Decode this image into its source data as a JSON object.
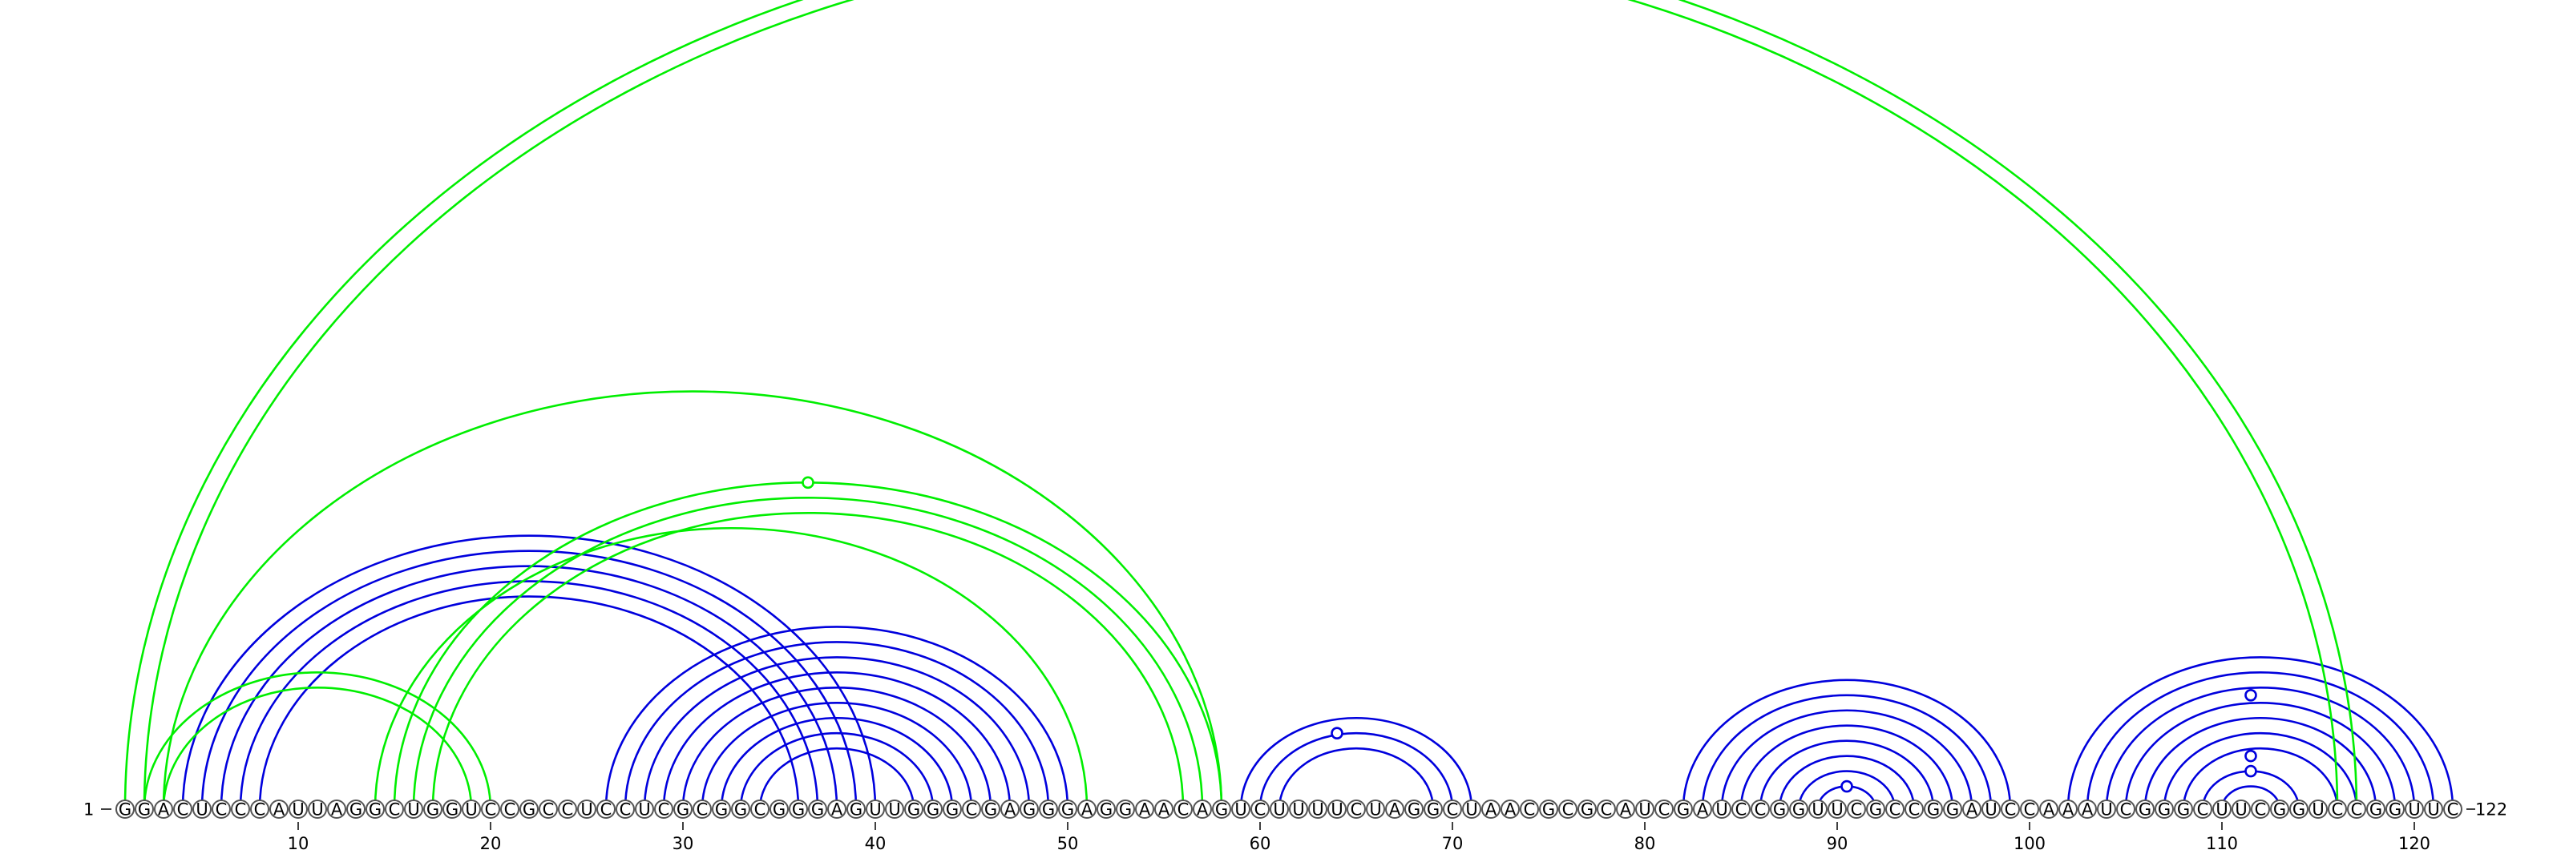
{
  "sequence": "GGACUCCCAUUAGGCUGGUCCGCCUCCUCGCGGCGGGAGUUGGGCGAGGGAGGAACAGUCUUUUCUAGGCUAACGCGCAUCGAUCCGGUUCGCCGGAUCCAAAUCGGGCUUCGGUCCGGUUC",
  "length": 122,
  "start_label": "1",
  "end_label": "122",
  "axis_ticks": [
    10,
    20,
    30,
    40,
    50,
    60,
    70,
    80,
    90,
    100,
    110,
    120
  ],
  "colors": {
    "blue": "#0000dd",
    "green": "#00ee00"
  },
  "blue_groups": [
    {
      "left": [
        4,
        5,
        6,
        7,
        8
      ],
      "right": [
        40,
        39,
        38,
        37,
        36
      ]
    },
    {
      "left": [
        26,
        27,
        28,
        29,
        30,
        31
      ],
      "right": [
        50,
        49,
        48,
        47,
        46,
        45
      ]
    },
    {
      "left": [
        32,
        33,
        34
      ],
      "right": [
        44,
        43,
        42
      ]
    },
    {
      "left": [
        59,
        60,
        61
      ],
      "right": [
        71,
        70,
        69
      ]
    },
    {
      "left": [
        82,
        83,
        84,
        85,
        86,
        87,
        88,
        89
      ],
      "right": [
        99,
        98,
        97,
        96,
        95,
        94,
        93,
        92
      ]
    },
    {
      "left": [
        102,
        103,
        104,
        105,
        106,
        107,
        108,
        109,
        110
      ],
      "right": [
        122,
        121,
        120,
        119,
        118,
        117,
        116,
        114,
        113
      ]
    }
  ],
  "green_groups": [
    {
      "left": [
        1,
        2
      ],
      "right": [
        117,
        116
      ]
    },
    {
      "left": [
        2,
        3
      ],
      "right": [
        20,
        19
      ]
    },
    {
      "left": [
        14
      ],
      "right": [
        51
      ]
    },
    {
      "left": [
        15,
        16,
        17
      ],
      "right": [
        58,
        57,
        56
      ]
    },
    {
      "left": [
        3
      ],
      "right": [
        58
      ]
    }
  ],
  "markers": [
    {
      "position": 36.5,
      "pair_span": [
        15,
        58
      ],
      "color": "green"
    },
    {
      "position": 64.0,
      "pair_span": [
        60,
        70
      ],
      "color": "blue"
    },
    {
      "position": 90.5,
      "pair_span": [
        89,
        92
      ],
      "color": "blue"
    },
    {
      "position": 111.5,
      "pair_span": [
        109,
        114
      ],
      "color": "blue"
    },
    {
      "position": 111.5,
      "pair_span": [
        108,
        115
      ],
      "color": "blue"
    },
    {
      "position": 111.5,
      "pair_span": [
        104,
        119
      ],
      "color": "blue"
    }
  ]
}
